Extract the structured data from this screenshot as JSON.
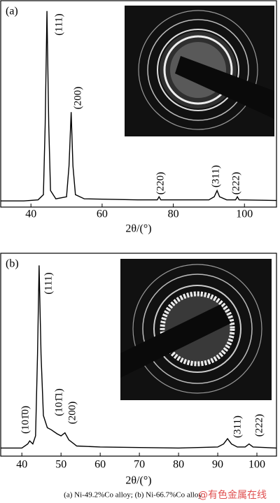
{
  "chart_data": [
    {
      "type": "line",
      "panel_label": "(a)",
      "xlabel": "2θ/(°)",
      "xlim": [
        31.5,
        109
      ],
      "xticks": [
        40,
        60,
        80,
        100
      ],
      "ylim": [
        0,
        100
      ],
      "x": [
        31.5,
        38,
        42,
        43.5,
        44,
        44.5,
        45,
        45.5,
        47,
        50,
        50.7,
        51.3,
        51.8,
        52.5,
        55,
        70,
        75.5,
        76,
        76.5,
        90,
        91.5,
        92.3,
        93,
        95,
        97.5,
        98,
        98.5,
        109
      ],
      "series": [
        {
          "color": "#000000",
          "values": [
            3,
            3,
            3.5,
            6,
            40,
            95,
            40,
            8,
            4,
            5,
            20,
            46,
            20,
            6,
            4,
            3.5,
            3.5,
            5,
            3.5,
            3.5,
            5,
            8,
            5,
            3.5,
            3.5,
            5,
            3.5,
            3.2
          ]
        }
      ],
      "annotations": [
        "(111)",
        "(200)",
        "(220)",
        "(311)",
        "(222)"
      ]
    },
    {
      "type": "line",
      "panel_label": "(b)",
      "xlabel": "2θ/(°)",
      "xlim": [
        34.6,
        105
      ],
      "xticks": [
        40,
        50,
        60,
        70,
        80,
        90,
        100
      ],
      "ylim": [
        0,
        100
      ],
      "x": [
        34.6,
        40,
        41.5,
        42,
        42.8,
        43.5,
        44,
        44.4,
        44.9,
        45.5,
        46.5,
        47.5,
        49,
        50,
        51,
        52,
        54,
        60,
        80,
        90,
        91.5,
        92.5,
        93.5,
        95,
        97,
        98,
        99,
        105
      ],
      "series": [
        {
          "color": "#000000",
          "values": [
            4,
            4,
            6,
            7.5,
            6,
            10,
            50,
            94,
            50,
            20,
            14,
            13,
            11,
            10,
            11.5,
            8,
            5,
            4.5,
            4,
            4.5,
            6,
            8.6,
            6,
            4.5,
            4.5,
            6,
            4.5,
            4
          ]
        }
      ],
      "annotations": [
        "(111)",
        "(101̄0)",
        "(101̄1)",
        "(200)",
        "(311)",
        "(222)"
      ]
    }
  ],
  "caption": "(a) Ni-49.2%Co alloy; (b) Ni-66.7%Co alloy",
  "watermark": "@有色金属在线"
}
